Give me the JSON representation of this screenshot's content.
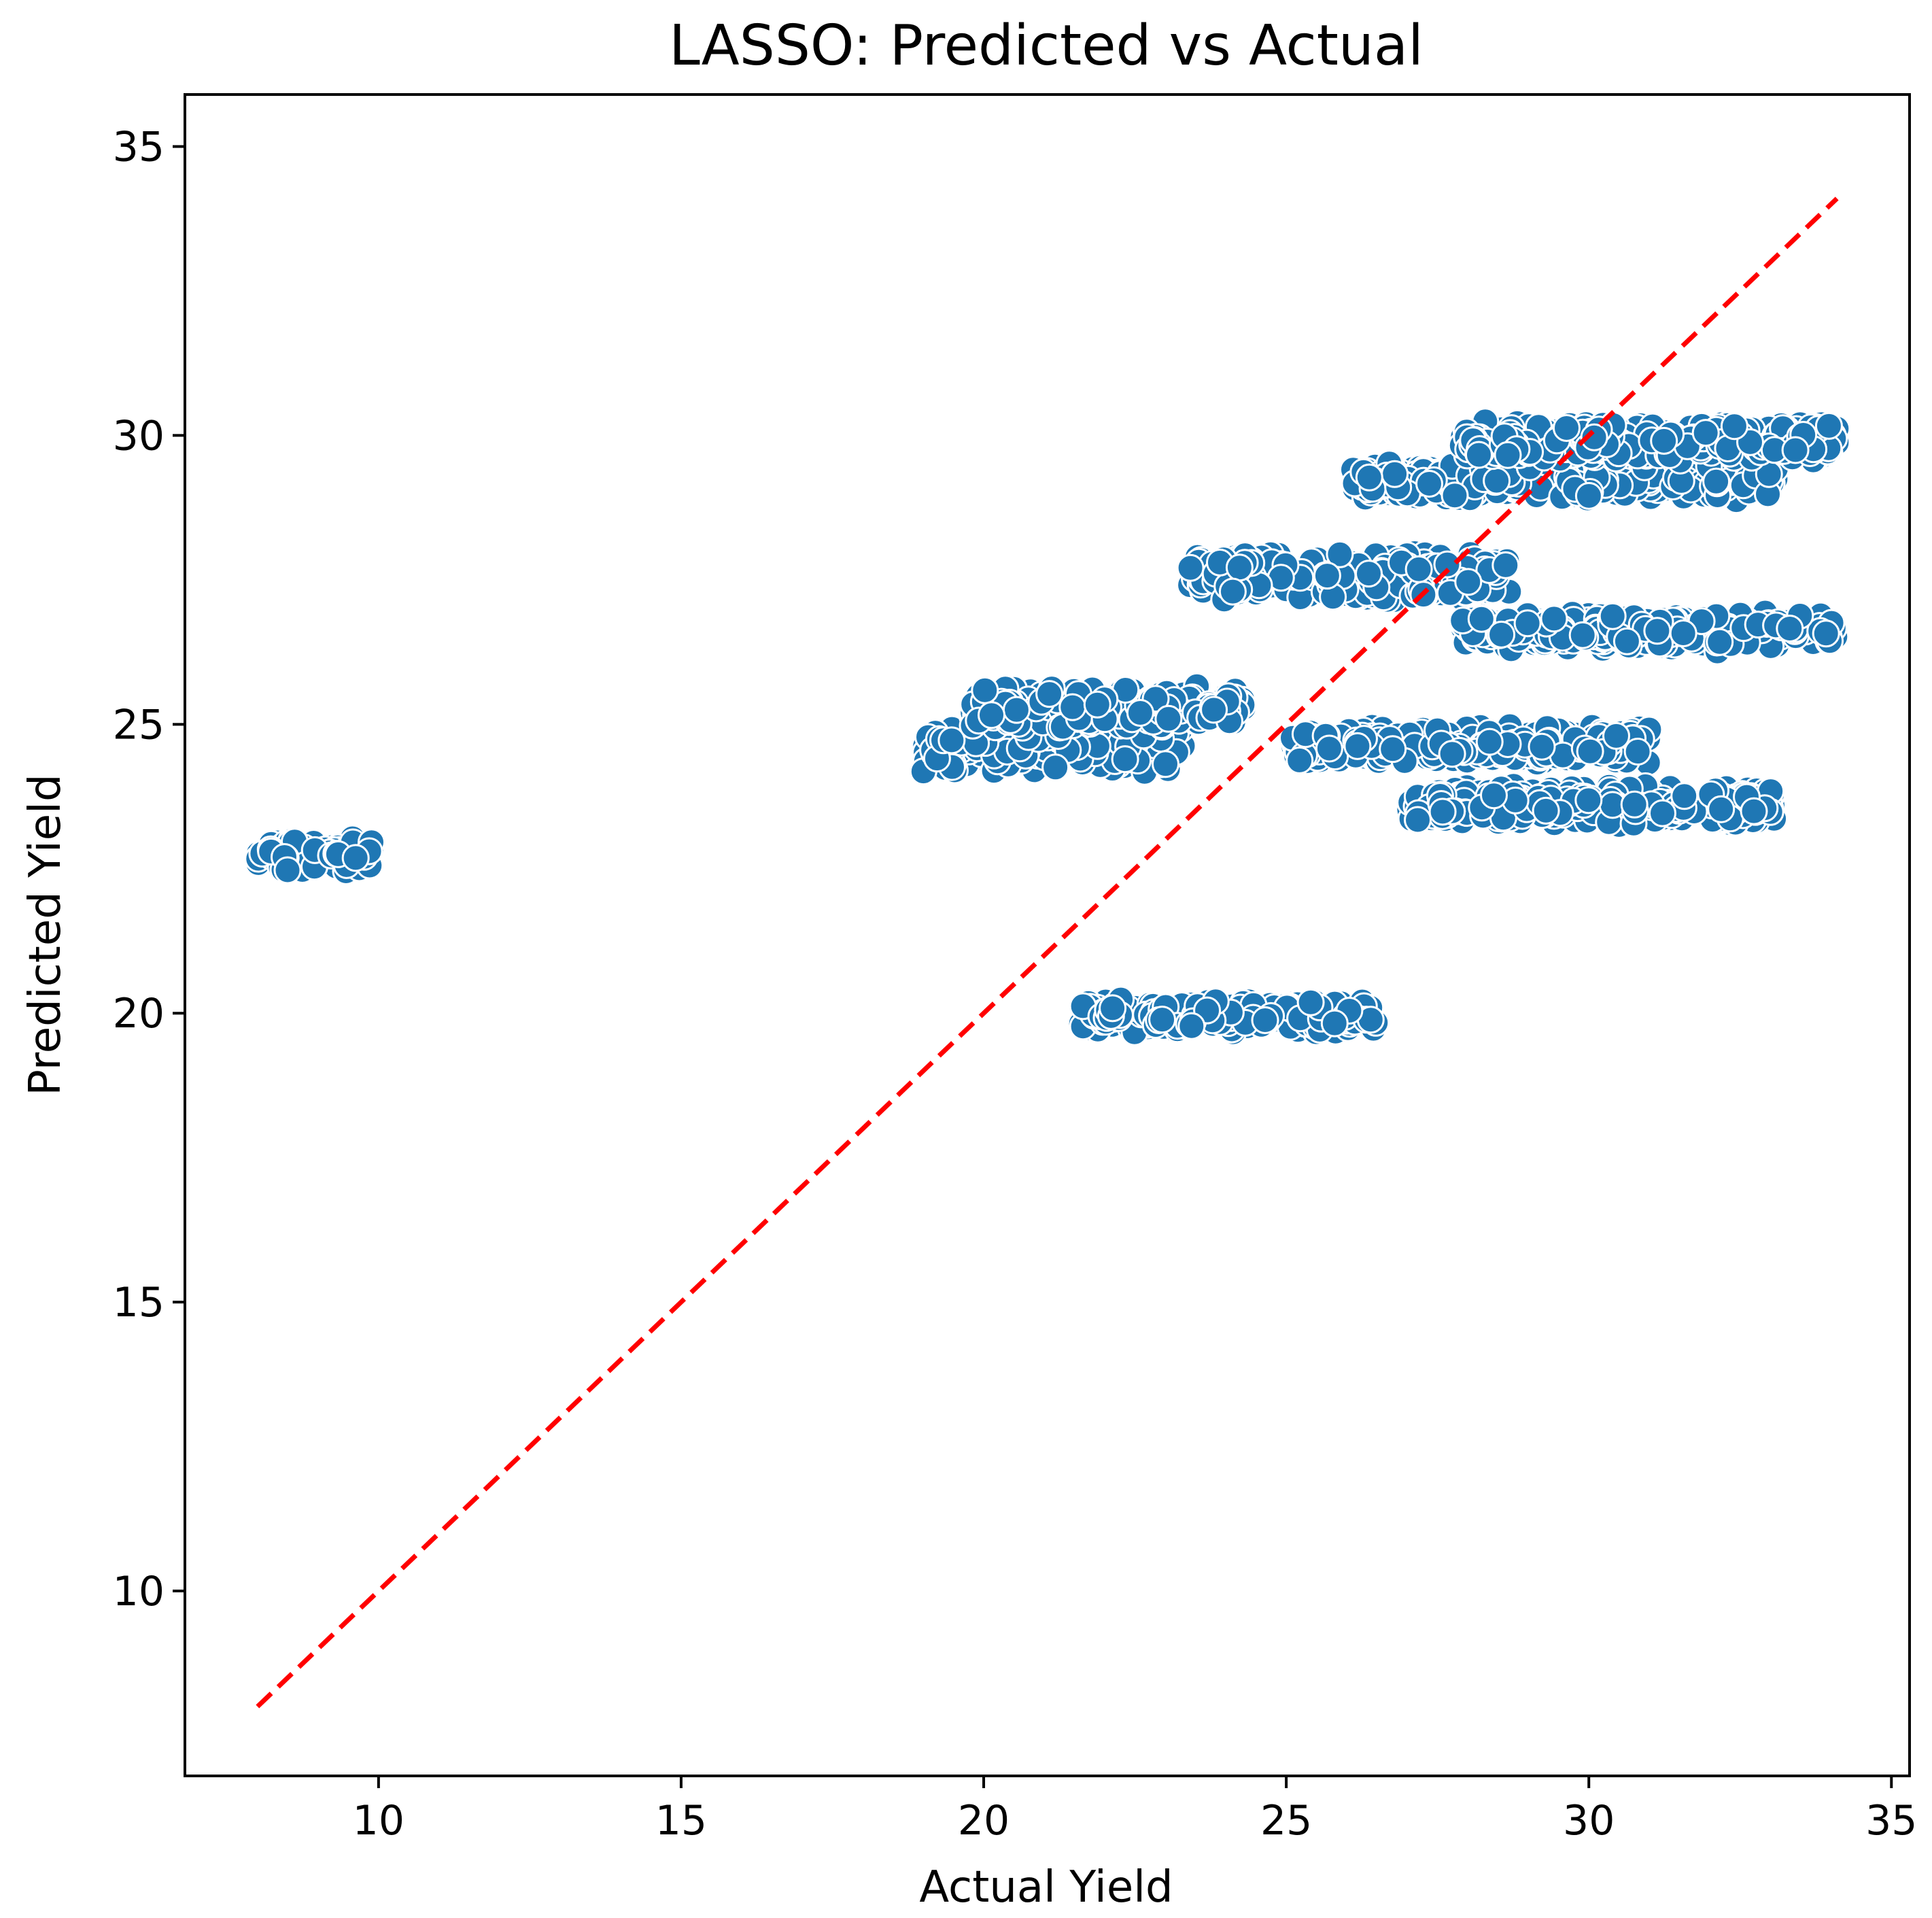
{
  "chart_data": {
    "type": "scatter",
    "title": "LASSO: Predicted vs Actual",
    "xlabel": "Actual Yield",
    "ylabel": "Predicted Yield",
    "xlim": [
      6.8,
      35.3
    ],
    "ylim": [
      6.8,
      35.9
    ],
    "xticks": [
      10,
      15,
      20,
      25,
      30,
      35
    ],
    "yticks": [
      10,
      15,
      20,
      25,
      30,
      35
    ],
    "grid": false,
    "legend": "none",
    "colors": {
      "points": "#1f77b4",
      "point_edge": "#ffffff",
      "reference_line": "#ff0000"
    },
    "reference_line": {
      "style": "dashed",
      "from": [
        8.0,
        8.0
      ],
      "to": [
        34.1,
        34.1
      ]
    },
    "clusters": [
      {
        "x_range": [
          8.0,
          9.9
        ],
        "y": 22.75,
        "y_spread": 0.35
      },
      {
        "x_range": [
          19.0,
          23.3
        ],
        "y": 24.6,
        "y_spread": 0.45
      },
      {
        "x_range": [
          19.8,
          24.3
        ],
        "y": 25.3,
        "y_spread": 0.4
      },
      {
        "x_range": [
          21.6,
          26.5
        ],
        "y": 19.95,
        "y_spread": 0.3
      },
      {
        "x_range": [
          23.4,
          28.7
        ],
        "y": 27.55,
        "y_spread": 0.45
      },
      {
        "x_range": [
          25.1,
          31.0
        ],
        "y": 24.65,
        "y_spread": 0.35
      },
      {
        "x_range": [
          26.1,
          33.1
        ],
        "y": 29.2,
        "y_spread": 0.35
      },
      {
        "x_range": [
          27.0,
          33.1
        ],
        "y": 23.6,
        "y_spread": 0.35
      },
      {
        "x_range": [
          27.9,
          34.1
        ],
        "y": 26.6,
        "y_spread": 0.35
      },
      {
        "x_range": [
          27.9,
          34.1
        ],
        "y": 29.9,
        "y_spread": 0.35
      }
    ]
  }
}
